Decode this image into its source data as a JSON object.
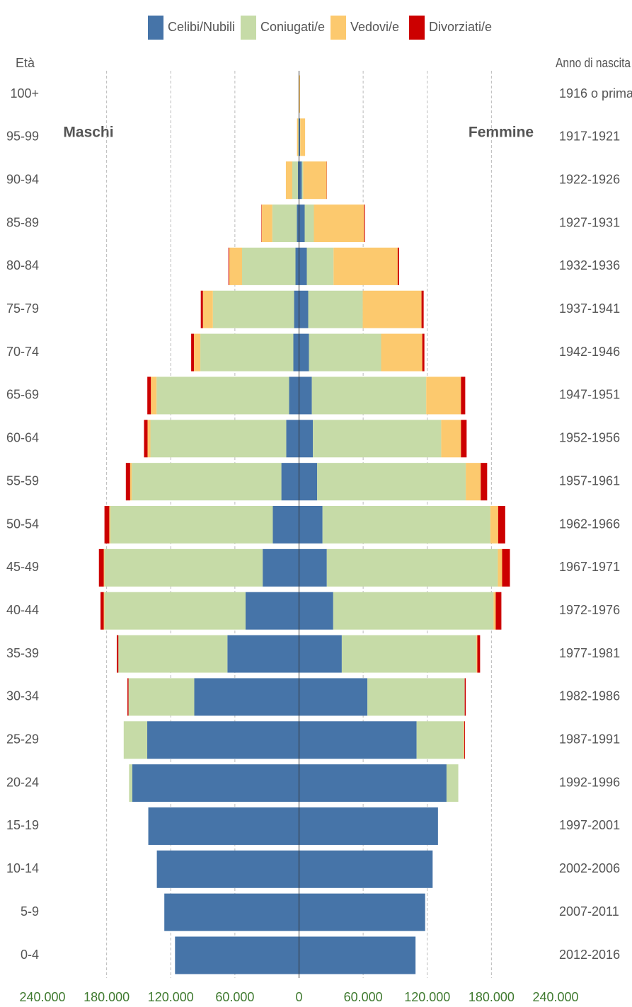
{
  "chart_data": {
    "type": "pyramid",
    "y_label": "Età",
    "y2_label": "Anno di nascita",
    "male_label": "Maschi",
    "female_label": "Femmine",
    "categories": [
      "0-4",
      "5-9",
      "10-14",
      "15-19",
      "20-24",
      "25-29",
      "30-34",
      "35-39",
      "40-44",
      "45-49",
      "50-54",
      "55-59",
      "60-64",
      "65-69",
      "70-74",
      "75-79",
      "80-84",
      "85-89",
      "90-94",
      "95-99",
      "100+"
    ],
    "birth_years": [
      "2012-2016",
      "2007-2011",
      "2002-2006",
      "1997-2001",
      "1992-1996",
      "1987-1991",
      "1982-1986",
      "1977-1981",
      "1972-1976",
      "1967-1971",
      "1962-1966",
      "1957-1961",
      "1952-1956",
      "1947-1951",
      "1942-1946",
      "1937-1941",
      "1932-1936",
      "1927-1931",
      "1922-1926",
      "1917-1921",
      "1916 o prima"
    ],
    "series": [
      {
        "name": "Celibi/Nubili",
        "color": "#4674a8",
        "male": [
          116000,
          126000,
          133000,
          141000,
          156000,
          142000,
          98000,
          67000,
          50000,
          34000,
          24500,
          16500,
          12000,
          9300,
          5300,
          4600,
          3300,
          2000,
          1000,
          300,
          100
        ],
        "female": [
          109000,
          118000,
          125000,
          130000,
          138000,
          110000,
          64000,
          40000,
          32000,
          26000,
          22000,
          17000,
          13000,
          12000,
          9300,
          8600,
          7300,
          5300,
          2600,
          1000,
          200
        ]
      },
      {
        "name": "Coniugati/e",
        "color": "#c6dba7",
        "male": [
          0,
          0,
          0,
          0,
          3000,
          22000,
          61500,
          102000,
          132000,
          148000,
          152000,
          140000,
          127000,
          124000,
          87000,
          76000,
          50000,
          23000,
          5300,
          600,
          100
        ],
        "female": [
          0,
          0,
          0,
          0,
          11000,
          44000,
          91000,
          126000,
          150000,
          160000,
          157000,
          139000,
          120000,
          107000,
          67500,
          51000,
          25000,
          8600,
          1300,
          200,
          0
        ]
      },
      {
        "name": "Vedovi/e",
        "color": "#fcc96e",
        "male": [
          0,
          0,
          0,
          0,
          0,
          0,
          0,
          0,
          700,
          700,
          1000,
          1500,
          2700,
          5300,
          6000,
          9300,
          12000,
          10000,
          6000,
          1000,
          200
        ],
        "female": [
          0,
          0,
          0,
          0,
          0,
          600,
          0,
          800,
          2000,
          4000,
          7300,
          14000,
          18500,
          32500,
          38500,
          55000,
          60000,
          47000,
          22000,
          4500,
          800
        ]
      },
      {
        "name": "Divorziati/e",
        "color": "#cc0000",
        "male": [
          0,
          0,
          0,
          0,
          0,
          0,
          1000,
          1500,
          3000,
          4500,
          4500,
          4000,
          3300,
          3300,
          2600,
          2000,
          700,
          300,
          0,
          0,
          0
        ],
        "female": [
          0,
          0,
          0,
          0,
          0,
          600,
          1000,
          2600,
          5300,
          7300,
          6600,
          6000,
          5300,
          4000,
          2000,
          2000,
          1300,
          700,
          200,
          0,
          0
        ]
      }
    ],
    "xlim": [
      -240000,
      240000
    ],
    "xticks": [
      {
        "value": -240000,
        "label": "240.000"
      },
      {
        "value": -180000,
        "label": "180.000"
      },
      {
        "value": -120000,
        "label": "120.000"
      },
      {
        "value": -60000,
        "label": "60.000"
      },
      0,
      {
        "value": 60000,
        "label": "60.000"
      },
      {
        "value": 120000,
        "label": "120.000"
      },
      {
        "value": 180000,
        "label": "180.000"
      },
      {
        "value": 240000,
        "label": "240.000"
      }
    ],
    "grid": true
  }
}
